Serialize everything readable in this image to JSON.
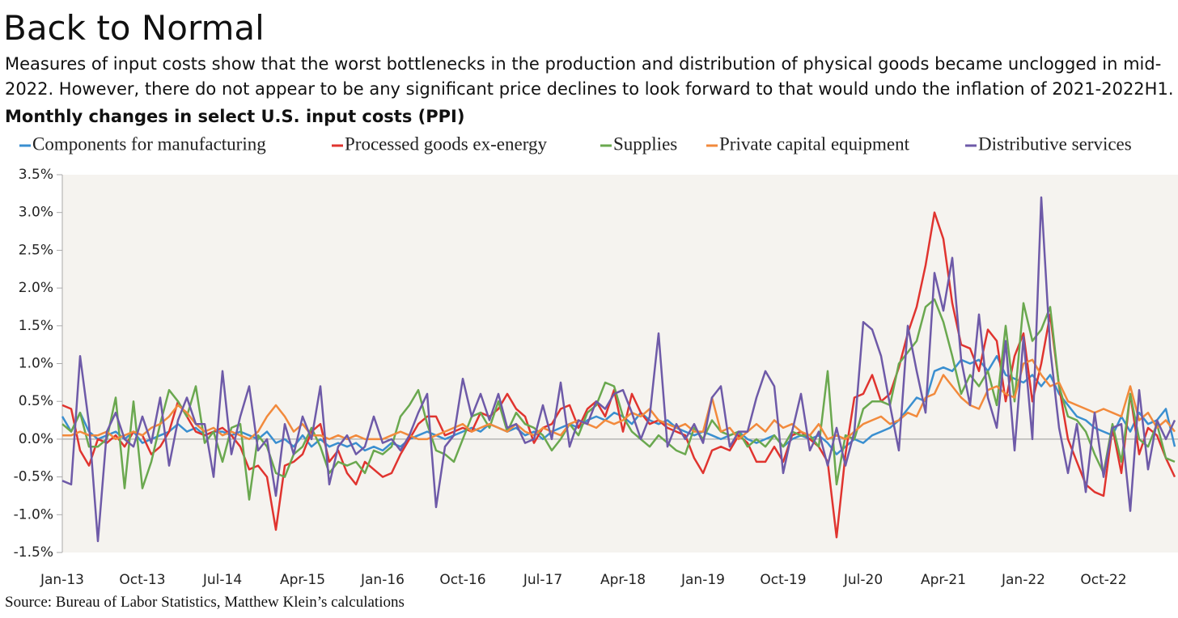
{
  "title": "Back to Normal",
  "subtitle": "Measures of input costs show that the worst bottlenecks in the production and distribution of physical goods became unclogged in mid-2022. However, there do not appear to be any significant price declines to look forward to that would undo the inflation of 2021-2022H1.",
  "source": "Source: Bureau of Labor Statistics, Matthew Klein’s calculations",
  "chart_data": {
    "type": "line",
    "title": "Monthly changes in select U.S. input costs (PPI)",
    "categories": [
      "Jan-13",
      null,
      null,
      null,
      null,
      null,
      null,
      null,
      null,
      "Oct-13",
      null,
      null,
      null,
      null,
      null,
      null,
      null,
      null,
      "Jul-14",
      null,
      null,
      null,
      null,
      null,
      null,
      null,
      null,
      "Apr-15",
      null,
      null,
      null,
      null,
      null,
      null,
      null,
      null,
      "Jan-16",
      null,
      null,
      null,
      null,
      null,
      null,
      null,
      null,
      "Oct-16",
      null,
      null,
      null,
      null,
      null,
      null,
      null,
      null,
      "Jul-17",
      null,
      null,
      null,
      null,
      null,
      null,
      null,
      null,
      "Apr-18",
      null,
      null,
      null,
      null,
      null,
      null,
      null,
      null,
      "Jan-19",
      null,
      null,
      null,
      null,
      null,
      null,
      null,
      null,
      "Oct-19",
      null,
      null,
      null,
      null,
      null,
      null,
      null,
      null,
      "Jul-20",
      null,
      null,
      null,
      null,
      null,
      null,
      null,
      null,
      "Apr-21",
      null,
      null,
      null,
      null,
      null,
      null,
      null,
      null,
      "Jan-22",
      null,
      null,
      null,
      null,
      null,
      null,
      null,
      null,
      "Oct-22",
      null,
      null,
      null,
      null,
      null,
      null,
      null,
      null
    ],
    "ylim": [
      -1.5,
      3.5
    ],
    "yticks": [
      {
        "value": -1.5,
        "label": "-1.5%"
      },
      {
        "value": -1.0,
        "label": "-1.0%"
      },
      {
        "value": -0.5,
        "label": "-0.5%"
      },
      {
        "value": 0,
        "label": "0.0%"
      },
      {
        "value": 0.5,
        "label": "0.5%"
      },
      {
        "value": 1.0,
        "label": "1.0%"
      },
      {
        "value": 1.5,
        "label": "1.5%"
      },
      {
        "value": 2.0,
        "label": "2.0%"
      },
      {
        "value": 2.5,
        "label": "2.5%"
      },
      {
        "value": 3.0,
        "label": "3.0%"
      },
      {
        "value": 3.5,
        "label": "3.5%"
      }
    ],
    "legend": "top",
    "series": [
      {
        "name": "Components for manufacturing",
        "color": "#3a8fd0",
        "values": [
          0.3,
          0.1,
          0.35,
          0.1,
          0.0,
          0.05,
          0.1,
          0.0,
          0.1,
          -0.05,
          0.0,
          0.05,
          0.1,
          0.2,
          0.1,
          0.15,
          0.05,
          0.1,
          0.1,
          0.05,
          0.1,
          0.05,
          0.0,
          0.1,
          -0.05,
          0.0,
          -0.1,
          0.05,
          -0.1,
          0.0,
          -0.1,
          -0.05,
          -0.1,
          -0.05,
          -0.15,
          -0.1,
          -0.15,
          -0.05,
          -0.1,
          0.0,
          0.05,
          0.1,
          0.05,
          0.0,
          0.05,
          0.1,
          0.15,
          0.1,
          0.2,
          0.15,
          0.1,
          0.15,
          0.05,
          0.1,
          0.0,
          0.1,
          0.15,
          0.2,
          0.15,
          0.25,
          0.3,
          0.25,
          0.35,
          0.3,
          0.2,
          0.35,
          0.25,
          0.2,
          0.25,
          0.15,
          0.1,
          0.05,
          0.1,
          0.05,
          0.0,
          0.05,
          0.1,
          0.0,
          -0.05,
          0.0,
          0.05,
          -0.1,
          0.0,
          0.05,
          0.0,
          0.05,
          -0.05,
          -0.2,
          -0.1,
          0.0,
          -0.05,
          0.05,
          0.1,
          0.15,
          0.25,
          0.4,
          0.55,
          0.5,
          0.9,
          0.95,
          0.9,
          1.05,
          1.0,
          1.05,
          0.9,
          1.1,
          0.85,
          0.8,
          0.75,
          0.85,
          0.7,
          0.85,
          0.6,
          0.45,
          0.3,
          0.25,
          0.15,
          0.1,
          0.05,
          0.3,
          0.1,
          0.35,
          0.2,
          0.25,
          0.4,
          -0.1
        ]
      },
      {
        "name": "Processed goods ex-energy",
        "color": "#e0342f",
        "values": [
          0.45,
          0.4,
          -0.15,
          -0.35,
          0.0,
          -0.05,
          0.05,
          -0.1,
          0.1,
          0.05,
          -0.2,
          -0.1,
          0.1,
          0.5,
          0.3,
          0.1,
          0.05,
          0.1,
          0.15,
          0.05,
          -0.1,
          -0.4,
          -0.35,
          -0.5,
          -1.2,
          -0.35,
          -0.3,
          -0.2,
          0.1,
          0.2,
          -0.3,
          -0.15,
          -0.45,
          -0.6,
          -0.3,
          -0.4,
          -0.5,
          -0.45,
          -0.2,
          0.0,
          0.2,
          0.3,
          0.3,
          0.05,
          0.1,
          0.15,
          0.1,
          0.35,
          0.3,
          0.4,
          0.6,
          0.4,
          0.3,
          -0.05,
          0.15,
          0.2,
          0.4,
          0.45,
          0.15,
          0.4,
          0.5,
          0.3,
          0.65,
          0.1,
          0.6,
          0.35,
          0.2,
          0.25,
          0.15,
          0.1,
          0.05,
          -0.25,
          -0.45,
          -0.15,
          -0.1,
          -0.15,
          0.05,
          -0.05,
          -0.3,
          -0.3,
          -0.1,
          -0.3,
          0.05,
          0.1,
          0.0,
          -0.1,
          -0.3,
          -1.3,
          -0.2,
          0.55,
          0.6,
          0.85,
          0.5,
          0.6,
          0.95,
          1.4,
          1.75,
          2.3,
          3.0,
          2.65,
          1.8,
          1.25,
          1.2,
          0.9,
          1.45,
          1.3,
          0.5,
          1.1,
          1.4,
          0.5,
          1.0,
          1.65,
          0.7,
          0.0,
          -0.3,
          -0.6,
          -0.7,
          -0.75,
          0.15,
          -0.45,
          0.6,
          -0.2,
          0.15,
          0.05,
          -0.25,
          -0.5
        ]
      },
      {
        "name": "Supplies",
        "color": "#6aa84f",
        "values": [
          0.2,
          0.1,
          0.35,
          -0.1,
          -0.1,
          0.0,
          0.55,
          -0.65,
          0.5,
          -0.65,
          -0.3,
          0.2,
          0.65,
          0.5,
          0.3,
          0.7,
          -0.05,
          0.1,
          -0.3,
          0.15,
          0.2,
          -0.8,
          0.05,
          -0.1,
          -0.45,
          -0.5,
          -0.2,
          -0.1,
          0.15,
          -0.1,
          -0.45,
          -0.3,
          -0.35,
          -0.3,
          -0.45,
          -0.15,
          -0.2,
          -0.1,
          0.3,
          0.45,
          0.65,
          0.2,
          -0.15,
          -0.2,
          -0.3,
          0.0,
          0.3,
          0.35,
          0.15,
          0.5,
          0.1,
          0.35,
          0.2,
          0.15,
          0.05,
          -0.15,
          0.0,
          0.2,
          0.05,
          0.35,
          0.45,
          0.75,
          0.7,
          0.3,
          0.1,
          0.0,
          -0.1,
          0.05,
          -0.05,
          -0.15,
          -0.2,
          0.15,
          0.0,
          0.25,
          0.1,
          0.05,
          0.1,
          -0.1,
          0.0,
          -0.1,
          0.05,
          -0.1,
          0.1,
          0.05,
          0.05,
          -0.1,
          0.9,
          -0.6,
          0.05,
          0.0,
          0.4,
          0.5,
          0.5,
          0.45,
          1.0,
          1.15,
          1.3,
          1.75,
          1.85,
          1.55,
          1.1,
          0.6,
          0.85,
          0.7,
          0.9,
          0.45,
          1.5,
          0.5,
          1.8,
          1.3,
          1.45,
          1.75,
          0.7,
          0.3,
          0.25,
          0.1,
          -0.2,
          -0.45,
          0.2,
          -0.3,
          0.6,
          0.0,
          -0.1,
          0.2,
          -0.25,
          -0.3
        ]
      },
      {
        "name": "Private capital equipment",
        "color": "#f28a3c",
        "values": [
          0.05,
          0.05,
          0.1,
          0.05,
          0.05,
          0.1,
          0.0,
          0.05,
          0.1,
          0.05,
          0.15,
          0.2,
          0.3,
          0.45,
          0.35,
          0.2,
          0.1,
          0.15,
          0.05,
          0.1,
          0.05,
          0.0,
          0.1,
          0.3,
          0.45,
          0.3,
          0.1,
          0.2,
          0.05,
          0.05,
          0.0,
          0.05,
          0.0,
          0.05,
          0.0,
          0.0,
          0.0,
          0.05,
          0.1,
          0.05,
          0.0,
          0.0,
          0.05,
          0.1,
          0.15,
          0.2,
          0.1,
          0.15,
          0.2,
          0.15,
          0.1,
          0.2,
          0.1,
          0.05,
          0.15,
          0.1,
          0.05,
          0.2,
          0.25,
          0.2,
          0.15,
          0.25,
          0.2,
          0.25,
          0.35,
          0.3,
          0.4,
          0.25,
          0.2,
          0.15,
          0.2,
          0.1,
          0.1,
          0.55,
          0.1,
          0.15,
          0.0,
          0.1,
          0.2,
          0.1,
          0.25,
          0.15,
          0.2,
          0.1,
          0.05,
          0.2,
          0.0,
          0.05,
          0.0,
          0.1,
          0.2,
          0.25,
          0.3,
          0.2,
          0.25,
          0.35,
          0.3,
          0.55,
          0.6,
          0.85,
          0.7,
          0.55,
          0.45,
          0.4,
          0.65,
          0.7,
          0.6,
          0.55,
          1.0,
          1.05,
          0.85,
          0.7,
          0.75,
          0.5,
          0.45,
          0.4,
          0.35,
          0.4,
          0.35,
          0.3,
          0.7,
          0.25,
          0.35,
          0.15,
          0.25,
          0.1
        ]
      },
      {
        "name": "Distributive services",
        "color": "#6e5aa8",
        "values": [
          -0.55,
          -0.6,
          1.1,
          0.2,
          -1.35,
          0.1,
          0.35,
          0.0,
          -0.1,
          0.3,
          -0.05,
          0.55,
          -0.35,
          0.25,
          0.55,
          0.2,
          0.2,
          -0.5,
          0.9,
          -0.2,
          0.3,
          0.7,
          -0.15,
          0.0,
          -0.75,
          0.2,
          -0.2,
          0.3,
          0.0,
          0.7,
          -0.6,
          -0.1,
          0.05,
          -0.2,
          -0.1,
          0.3,
          -0.05,
          0.0,
          -0.15,
          0.05,
          0.35,
          0.6,
          -0.9,
          -0.1,
          0.05,
          0.8,
          0.3,
          0.6,
          0.25,
          0.6,
          0.15,
          0.2,
          -0.05,
          0.0,
          0.45,
          0.0,
          0.75,
          -0.1,
          0.25,
          0.2,
          0.5,
          0.4,
          0.6,
          0.65,
          0.35,
          0.0,
          0.3,
          1.4,
          -0.1,
          0.2,
          0.0,
          0.2,
          -0.05,
          0.55,
          0.7,
          -0.1,
          0.1,
          0.1,
          0.55,
          0.9,
          0.7,
          -0.45,
          0.1,
          0.6,
          -0.15,
          0.1,
          -0.35,
          0.15,
          -0.35,
          0.1,
          1.55,
          1.45,
          1.1,
          0.45,
          -0.15,
          1.5,
          0.9,
          0.35,
          2.2,
          1.7,
          2.4,
          1.05,
          0.45,
          1.65,
          0.55,
          0.15,
          1.3,
          -0.15,
          1.35,
          0.0,
          3.2,
          1.2,
          0.15,
          -0.45,
          0.2,
          -0.7,
          0.35,
          -0.5,
          0.15,
          0.2,
          -0.95,
          0.65,
          -0.4,
          0.25,
          0.0,
          0.25
        ]
      }
    ]
  }
}
